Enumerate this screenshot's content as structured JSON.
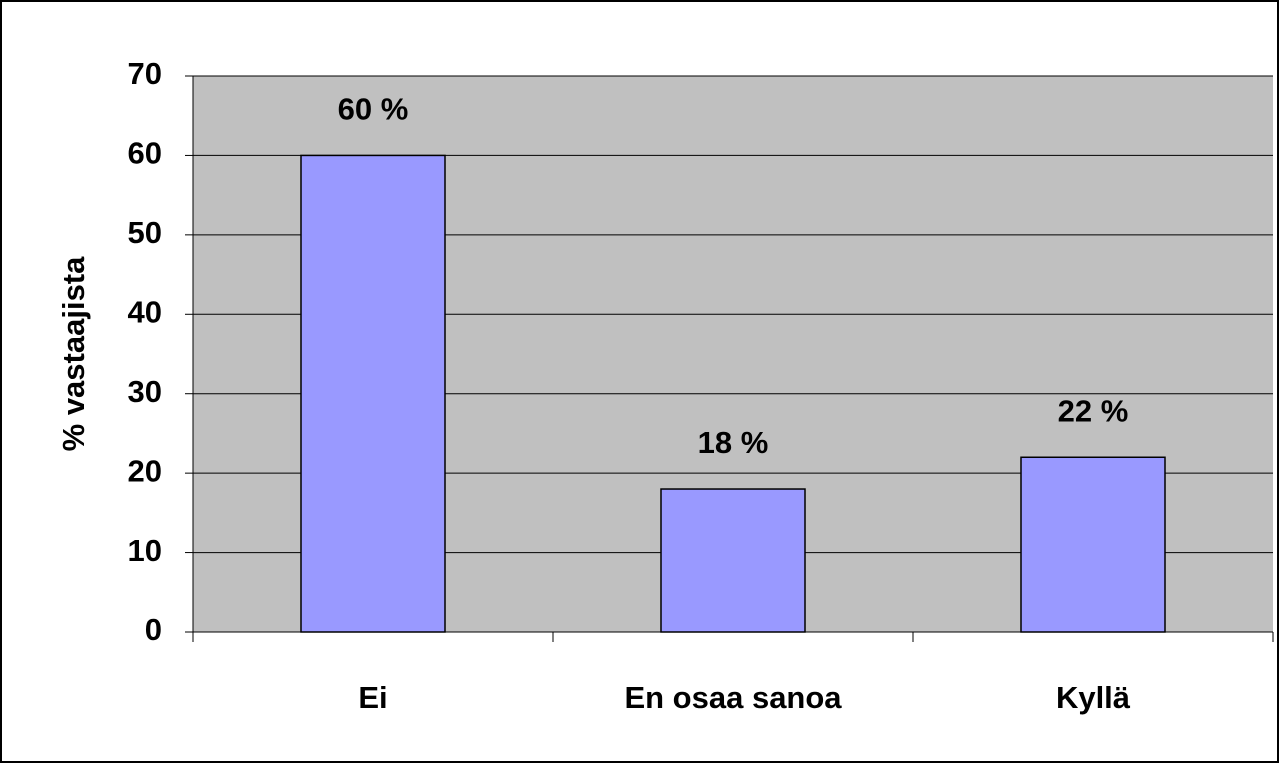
{
  "chart_data": {
    "type": "bar",
    "y_label": "% vastaajista",
    "categories": [
      "Ei",
      "En osaa sanoa",
      "Kyllä"
    ],
    "values": [
      60,
      18,
      22
    ],
    "value_labels": [
      "60 %",
      "18 %",
      "22 %"
    ],
    "color": "#9999ff",
    "ylim": [
      0,
      70
    ],
    "yticks": [
      0,
      10,
      20,
      30,
      40,
      50,
      60,
      70
    ],
    "grid": true
  }
}
